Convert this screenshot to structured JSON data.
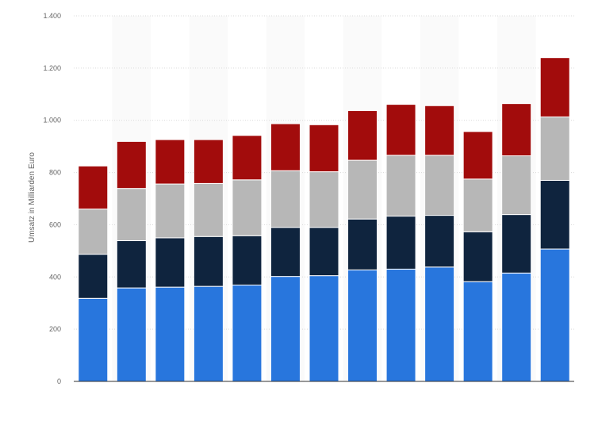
{
  "chart_data": {
    "type": "bar",
    "stacked": true,
    "ylabel": "Umsatz in Milliarden Euro",
    "xlabel": "",
    "ylim": [
      0,
      1400
    ],
    "y_ticks": [
      0,
      200,
      400,
      600,
      800,
      1000,
      1200,
      1400
    ],
    "y_tick_labels": [
      "0",
      "200",
      "400",
      "600",
      "800",
      "1.000",
      "1.200",
      "1.400"
    ],
    "grid": true,
    "categories": [
      "",
      "",
      "",
      "",
      "",
      "",
      "",
      "",
      "",
      "",
      "",
      "",
      ""
    ],
    "series": [
      {
        "color": "#2876dd",
        "values": [
          318,
          358,
          361,
          364,
          369,
          402,
          405,
          427,
          430,
          438,
          382,
          415,
          507
        ]
      },
      {
        "color": "#0f243e",
        "values": [
          169,
          181,
          189,
          191,
          189,
          188,
          185,
          195,
          203,
          198,
          191,
          224,
          263
        ]
      },
      {
        "color": "#b7b7b7",
        "values": [
          173,
          200,
          206,
          203,
          214,
          217,
          213,
          225,
          233,
          230,
          202,
          225,
          243
        ]
      },
      {
        "color": "#a20c0c",
        "values": [
          165,
          180,
          170,
          168,
          170,
          180,
          180,
          190,
          195,
          190,
          182,
          200,
          227
        ]
      }
    ]
  }
}
